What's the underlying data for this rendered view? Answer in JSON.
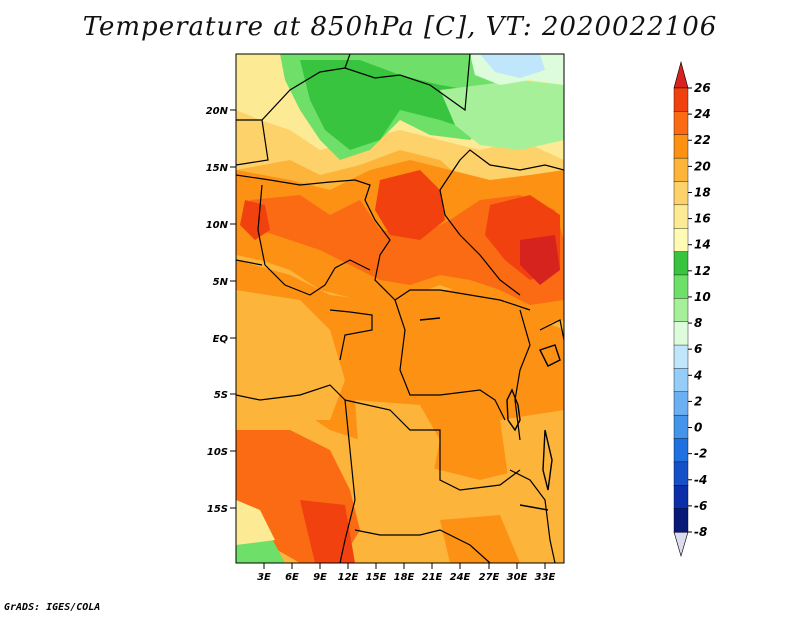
{
  "title": "Temperature at 850hPa [C], VT: 2020022106",
  "credit": "GrADS: IGES/COLA",
  "y_axis": {
    "labels": [
      "20N",
      "15N",
      "10N",
      "5N",
      "EQ",
      "5S",
      "10S",
      "15S"
    ]
  },
  "x_axis": {
    "labels": [
      "3E",
      "6E",
      "9E",
      "12E",
      "15E",
      "18E",
      "21E",
      "24E",
      "27E",
      "30E",
      "33E"
    ]
  },
  "colorbar": {
    "labels": [
      "26",
      "24",
      "22",
      "20",
      "18",
      "16",
      "14",
      "12",
      "10",
      "8",
      "6",
      "4",
      "2",
      "0",
      "-2",
      "-4",
      "-6",
      "-8"
    ],
    "colors": [
      "#d7231e",
      "#f0410f",
      "#fa6b14",
      "#fc9114",
      "#fcb43a",
      "#fdd26a",
      "#fdea94",
      "#fffab4",
      "#38c43e",
      "#6ee06a",
      "#a6f09a",
      "#dcfcdc",
      "#bfe6fb",
      "#94cdf8",
      "#6cb0f4",
      "#4494ec",
      "#1f70e0",
      "#1650c8",
      "#0c2fa8",
      "#081a78",
      "#dcdcf0"
    ]
  }
}
